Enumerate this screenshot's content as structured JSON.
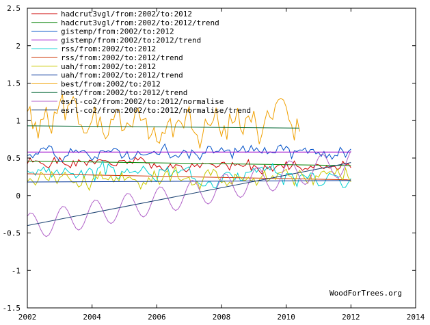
{
  "chart_data": {
    "type": "line",
    "title": "",
    "xlabel": "",
    "ylabel": "",
    "xlim": [
      2002,
      2014
    ],
    "ylim": [
      -1.5,
      2.5
    ],
    "x_ticks": [
      "2002",
      "2004",
      "2006",
      "2008",
      "2010",
      "2012",
      "2014"
    ],
    "y_ticks": [
      "2.5",
      "2",
      "1.5",
      "1",
      "0.5",
      "0",
      "-0.5",
      "-1",
      "-1.5"
    ],
    "legend_position": "top-left",
    "credit": "WoodForTrees.org",
    "series": [
      {
        "name": "hadcrut3vgl/from:2002/to:2012",
        "color": "#cc0000",
        "kind": "noisy",
        "base": 0.43,
        "slope": -0.006,
        "amp": 0.09,
        "seed": 1,
        "x0": 2002,
        "x1": 2012
      },
      {
        "name": "hadcrut3vgl/from:2002/to:2012/trend",
        "color": "#008000",
        "kind": "trend",
        "y0": 0.46,
        "y1": 0.4,
        "x0": 2002,
        "x1": 2012
      },
      {
        "name": "gistemp/from:2002/to:2012",
        "color": "#0050c8",
        "kind": "noisy",
        "base": 0.58,
        "slope": 0.0,
        "amp": 0.11,
        "seed": 2,
        "x0": 2002,
        "x1": 2012
      },
      {
        "name": "gistemp/from:2002/to:2012/trend",
        "color": "#9900cc",
        "kind": "trend",
        "y0": 0.58,
        "y1": 0.58,
        "x0": 2002,
        "x1": 2012
      },
      {
        "name": "rss/from:2002/to:2012",
        "color": "#00d0d0",
        "kind": "noisy",
        "base": 0.33,
        "slope": -0.008,
        "amp": 0.13,
        "seed": 3,
        "x0": 2002,
        "x1": 2012
      },
      {
        "name": "rss/from:2002/to:2012/trend",
        "color": "#cc3300",
        "kind": "trend",
        "y0": 0.29,
        "y1": 0.21,
        "x0": 2002,
        "x1": 2012
      },
      {
        "name": "uah/from:2002/to:2012",
        "color": "#c8c800",
        "kind": "noisy",
        "base": 0.24,
        "slope": 0.0,
        "amp": 0.15,
        "seed": 4,
        "x0": 2002,
        "x1": 2012
      },
      {
        "name": "uah/from:2002/to:2012/trend",
        "color": "#003399",
        "kind": "trend",
        "y0": 0.18,
        "y1": 0.2,
        "x0": 2002,
        "x1": 2012
      },
      {
        "name": "best/from:2002/to:2012",
        "color": "#f0a000",
        "kind": "noisy",
        "base": 0.95,
        "slope": 0.0,
        "amp": 0.35,
        "seed": 5,
        "x0": 2002,
        "x1": 2010.4
      },
      {
        "name": "best/from:2002/to:2012/trend",
        "color": "#006633",
        "kind": "trend",
        "y0": 0.93,
        "y1": 0.9,
        "x0": 2002,
        "x1": 2010.4
      },
      {
        "name": "esrl-co2/from:2002/to:2012/normalise",
        "color": "#b060c8",
        "kind": "seasonal",
        "y0": -0.42,
        "y1": 0.45,
        "amp": 0.18,
        "x0": 2002,
        "x1": 2012
      },
      {
        "name": "esrl-co2/from:2002/to:2012/normalise/trend",
        "color": "#1a4070",
        "kind": "trend",
        "y0": -0.4,
        "y1": 0.44,
        "x0": 2002,
        "x1": 2012
      }
    ]
  }
}
